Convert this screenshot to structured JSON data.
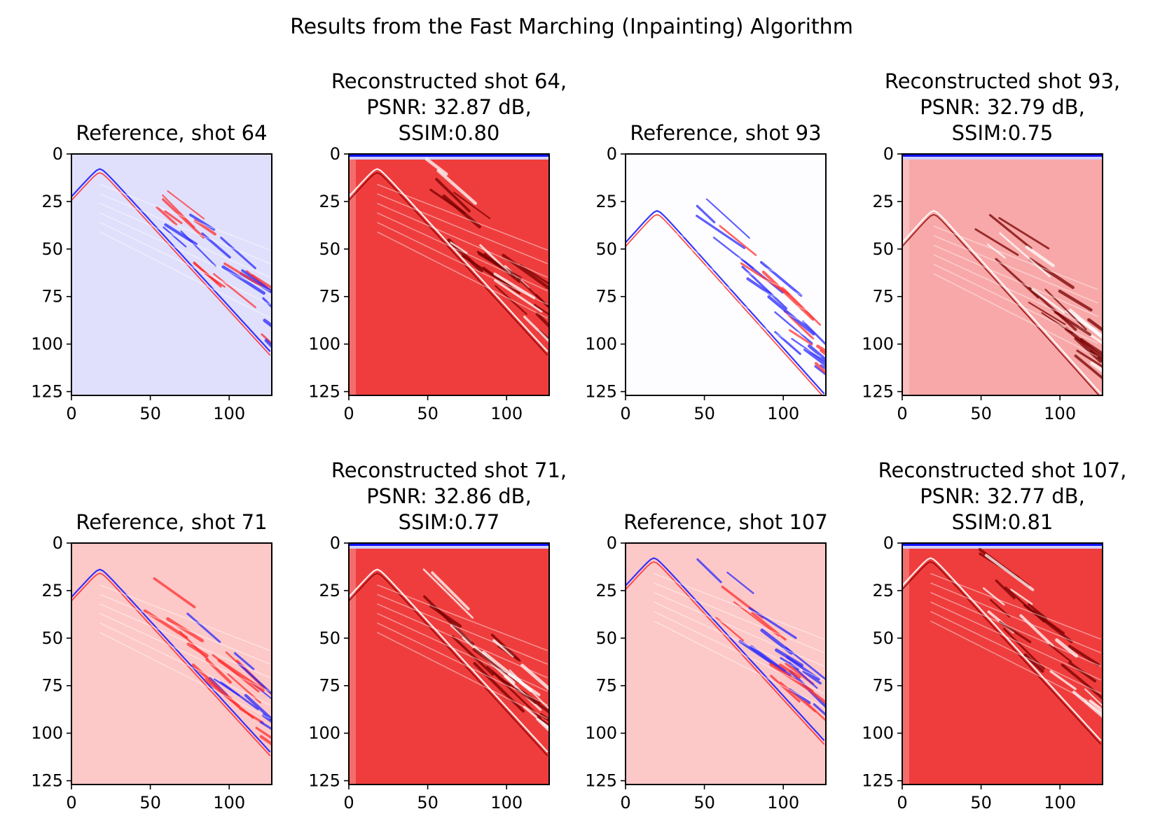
{
  "figure": {
    "suptitle": "Results from the Fast Marching (Inpainting) Algorithm"
  },
  "colors": {
    "negative": "#0000ff",
    "zero": "#ffffff",
    "positive": "#ff0000"
  },
  "chart_data": [
    {
      "type": "heatmap",
      "colormap": "bwr",
      "title_lines": [
        "Reference, shot 64"
      ],
      "shot": 64,
      "kind": "reference",
      "background": "light-blue",
      "xlim": [
        0,
        127
      ],
      "ylim": [
        127,
        0
      ],
      "xticks": [
        "0",
        "50",
        "100"
      ],
      "yticks": [
        "0",
        "25",
        "50",
        "75",
        "100",
        "125"
      ]
    },
    {
      "type": "heatmap",
      "colormap": "bwr",
      "title_lines": [
        "Reconstructed shot 64,",
        "PSNR: 32.87 dB,",
        "SSIM:0.80"
      ],
      "shot": 64,
      "psnr_db": 32.87,
      "ssim": 0.8,
      "kind": "reconstructed",
      "background": "red",
      "xlim": [
        0,
        127
      ],
      "ylim": [
        127,
        0
      ],
      "xticks": [
        "0",
        "50",
        "100"
      ],
      "yticks": [
        "0",
        "25",
        "50",
        "75",
        "100",
        "125"
      ]
    },
    {
      "type": "heatmap",
      "colormap": "bwr",
      "title_lines": [
        "Reference, shot 93"
      ],
      "shot": 93,
      "kind": "reference",
      "background": "white",
      "xlim": [
        0,
        127
      ],
      "ylim": [
        127,
        0
      ],
      "xticks": [
        "0",
        "50",
        "100"
      ],
      "yticks": [
        "0",
        "25",
        "50",
        "75",
        "100",
        "125"
      ]
    },
    {
      "type": "heatmap",
      "colormap": "bwr",
      "title_lines": [
        "Reconstructed shot 93,",
        "PSNR: 32.79 dB,",
        "SSIM:0.75"
      ],
      "shot": 93,
      "psnr_db": 32.79,
      "ssim": 0.75,
      "kind": "reconstructed",
      "background": "light-red",
      "xlim": [
        0,
        127
      ],
      "ylim": [
        127,
        0
      ],
      "xticks": [
        "0",
        "50",
        "100"
      ],
      "yticks": [
        "0",
        "25",
        "50",
        "75",
        "100",
        "125"
      ]
    },
    {
      "type": "heatmap",
      "colormap": "bwr",
      "title_lines": [
        "Reference, shot 71"
      ],
      "shot": 71,
      "kind": "reference",
      "background": "pink",
      "xlim": [
        0,
        127
      ],
      "ylim": [
        127,
        0
      ],
      "xticks": [
        "0",
        "50",
        "100"
      ],
      "yticks": [
        "0",
        "25",
        "50",
        "75",
        "100",
        "125"
      ]
    },
    {
      "type": "heatmap",
      "colormap": "bwr",
      "title_lines": [
        "Reconstructed shot 71,",
        "PSNR: 32.86 dB,",
        "SSIM:0.77"
      ],
      "shot": 71,
      "psnr_db": 32.86,
      "ssim": 0.77,
      "kind": "reconstructed",
      "background": "red",
      "xlim": [
        0,
        127
      ],
      "ylim": [
        127,
        0
      ],
      "xticks": [
        "0",
        "50",
        "100"
      ],
      "yticks": [
        "0",
        "25",
        "50",
        "75",
        "100",
        "125"
      ]
    },
    {
      "type": "heatmap",
      "colormap": "bwr",
      "title_lines": [
        "Reference, shot 107"
      ],
      "shot": 107,
      "kind": "reference",
      "background": "pink",
      "xlim": [
        0,
        127
      ],
      "ylim": [
        127,
        0
      ],
      "xticks": [
        "0",
        "50",
        "100"
      ],
      "yticks": [
        "0",
        "25",
        "50",
        "75",
        "100",
        "125"
      ]
    },
    {
      "type": "heatmap",
      "colormap": "bwr",
      "title_lines": [
        "Reconstructed shot 107,",
        "PSNR: 32.77 dB,",
        "SSIM:0.81"
      ],
      "shot": 107,
      "psnr_db": 32.77,
      "ssim": 0.81,
      "kind": "reconstructed",
      "background": "red",
      "xlim": [
        0,
        127
      ],
      "ylim": [
        127,
        0
      ],
      "xticks": [
        "0",
        "50",
        "100"
      ],
      "yticks": [
        "0",
        "25",
        "50",
        "75",
        "100",
        "125"
      ]
    }
  ]
}
